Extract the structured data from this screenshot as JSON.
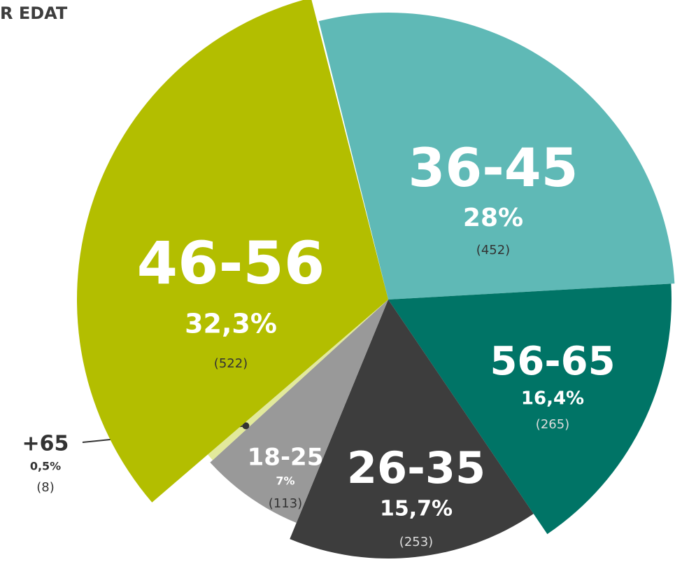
{
  "chart_data": {
    "type": "pie",
    "title": "R EDAT",
    "categories": [
      "36-45",
      "56-65",
      "26-35",
      "18-25",
      "+65",
      "46-56"
    ],
    "values": [
      28,
      16.4,
      15.7,
      7,
      0.5,
      32.3
    ],
    "value_labels": [
      "28%",
      "16,4%",
      "15,7%",
      "7%",
      "0,5%",
      "32,3%"
    ],
    "count_labels": [
      "(452)",
      "(265)",
      "(253)",
      "(113)",
      "(8)",
      "(522)"
    ],
    "colors": [
      "#5fb9b6",
      "#007466",
      "#3d3d3d",
      "#999999",
      "#e2e99c",
      "#b3be00"
    ]
  }
}
